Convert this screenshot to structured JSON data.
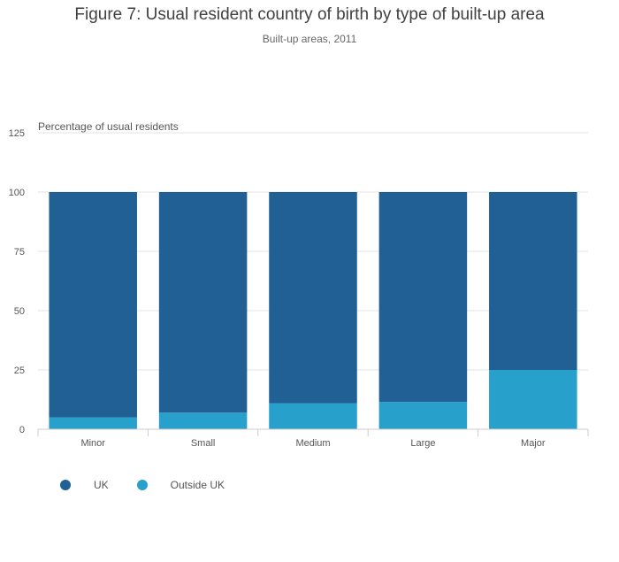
{
  "chart_data": {
    "type": "bar",
    "stacked": true,
    "title": "Figure 7: Usual resident country of birth by type of built-up area",
    "subtitle": "Built-up areas, 2011",
    "xlabel": "",
    "ylabel": "Percentage of usual residents",
    "ylim": [
      0,
      125
    ],
    "yticks": [
      0,
      25,
      50,
      75,
      100,
      125
    ],
    "grid": true,
    "legend_position": "bottom-left",
    "categories": [
      "Minor",
      "Small",
      "Medium",
      "Large",
      "Major"
    ],
    "series": [
      {
        "name": "UK",
        "color": "#206095",
        "values": [
          95,
          93,
          89,
          88.5,
          75
        ]
      },
      {
        "name": "Outside UK",
        "color": "#27a0cc",
        "values": [
          5,
          7,
          11,
          11.5,
          25
        ]
      }
    ]
  }
}
